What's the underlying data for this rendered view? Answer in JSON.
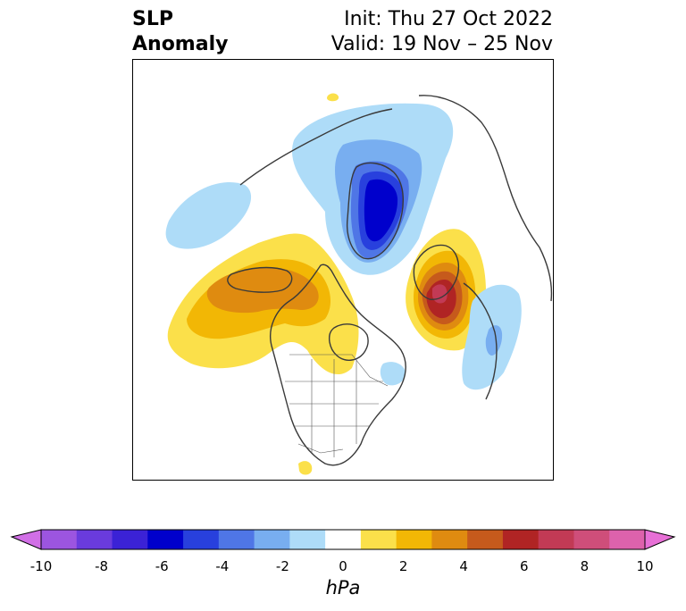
{
  "title": {
    "left_line1": "SLP",
    "left_line2": "Anomaly",
    "right_line1": "Init: Thu 27 Oct 2022",
    "right_line2": "Valid: 19 Nov – 25 Nov"
  },
  "map": {
    "projection": "polar-stereographic",
    "region": "Northern Hemisphere / North America"
  },
  "colorbar": {
    "unit": "hPa",
    "ticks": [
      "-10",
      "-8",
      "-6",
      "-4",
      "-2",
      "0",
      "2",
      "4",
      "6",
      "8",
      "10"
    ],
    "colors": [
      "#d16fe6",
      "#9c55e0",
      "#6a3bdd",
      "#3b22d6",
      "#0000cc",
      "#2840dd",
      "#4f76e6",
      "#78aef0",
      "#aedcf8",
      "#ffffff",
      "#fbe04a",
      "#f2b705",
      "#df8b10",
      "#c65a1c",
      "#b02424",
      "#c23a55",
      "#cf4e7a",
      "#dd62ac",
      "#e770d6"
    ]
  }
}
